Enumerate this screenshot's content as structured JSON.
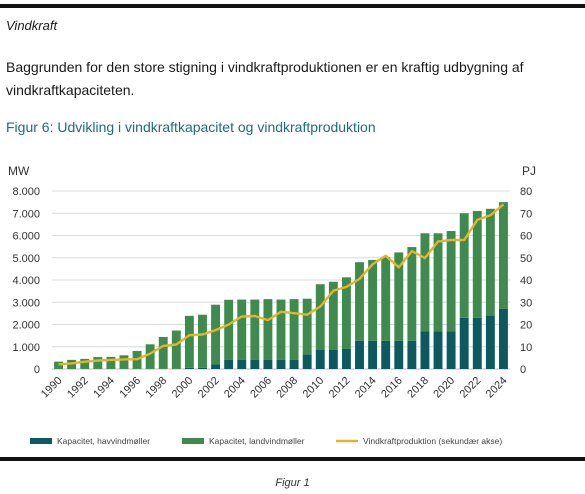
{
  "document": {
    "section_title": "Vindkraft",
    "paragraph": "Baggrunden for den store stigning i vindkraftproduktionen er en kraftig udbygning af vindkraftkapaciteten.",
    "paragraph_line1": "Baggrunden for den store stigning i vindkraftproduktionen er en kraftig udbygning af",
    "paragraph_line2": "vindkraftkapaciteten.",
    "figure_title": "Figur 6: Udvikling i vindkraftkapacitet og vindkraftproduktion",
    "caption": "Figur 1"
  },
  "chart_data": {
    "type": "bar",
    "stacked": true,
    "ylabel": "MW",
    "y2label": "PJ",
    "ylim": [
      0,
      8000
    ],
    "y2lim": [
      0,
      80
    ],
    "yticks": [
      "0",
      "1.000",
      "2.000",
      "3.000",
      "4.000",
      "5.000",
      "6.000",
      "7.000",
      "8.000"
    ],
    "y2ticks": [
      "0",
      "10",
      "20",
      "30",
      "40",
      "50",
      "60",
      "70",
      "80"
    ],
    "xtick_labels": [
      "1990",
      "1992",
      "1994",
      "1996",
      "1998",
      "2000",
      "2002",
      "2004",
      "2006",
      "2008",
      "2010",
      "2012",
      "2014",
      "2016",
      "2018",
      "2020",
      "2022",
      "2024"
    ],
    "categories": [
      "1990",
      "1991",
      "1992",
      "1993",
      "1994",
      "1995",
      "1996",
      "1997",
      "1998",
      "1999",
      "2000",
      "2001",
      "2002",
      "2003",
      "2004",
      "2005",
      "2006",
      "2007",
      "2008",
      "2009",
      "2010",
      "2011",
      "2012",
      "2013",
      "2014",
      "2015",
      "2016",
      "2017",
      "2018",
      "2019",
      "2020",
      "2021",
      "2022",
      "2023",
      "2024"
    ],
    "series": [
      {
        "name": "Kapacitet, havvindmøller",
        "color": "#0c5a5f",
        "axis": "left",
        "values": [
          0,
          0,
          5,
          5,
          5,
          5,
          10,
          10,
          10,
          10,
          50,
          50,
          200,
          420,
          420,
          420,
          420,
          420,
          420,
          660,
          870,
          870,
          900,
          1270,
          1270,
          1270,
          1270,
          1270,
          1700,
          1700,
          1700,
          2300,
          2300,
          2400,
          2700
        ]
      },
      {
        "name": "Kapacitet, landvindmøller",
        "color": "#3f8a4f",
        "axis": "left",
        "values": [
          330,
          410,
          450,
          530,
          540,
          610,
          800,
          1100,
          1430,
          1720,
          2340,
          2390,
          2690,
          2690,
          2700,
          2700,
          2720,
          2700,
          2720,
          2500,
          2940,
          3050,
          3220,
          3530,
          3630,
          3770,
          3970,
          4210,
          4400,
          4400,
          4500,
          4700,
          4800,
          4800,
          4800
        ]
      },
      {
        "name": "Vindkraftproduktion (sekundær akse)",
        "color": "#e1b52a",
        "axis": "right",
        "type": "line",
        "values": [
          2.1,
          2.5,
          3.3,
          3.8,
          4.1,
          4.3,
          4.4,
          6.9,
          10.4,
          11.0,
          15.2,
          15.5,
          17.5,
          20.0,
          23.6,
          23.8,
          22.0,
          25.7,
          25.1,
          24.4,
          28.1,
          35.2,
          36.9,
          40.5,
          47.1,
          50.9,
          45.7,
          53.0,
          49.9,
          57.3,
          58.0,
          58.0,
          67.0,
          69.1,
          74.0
        ]
      }
    ],
    "legend_position": "bottom",
    "grid": true
  }
}
